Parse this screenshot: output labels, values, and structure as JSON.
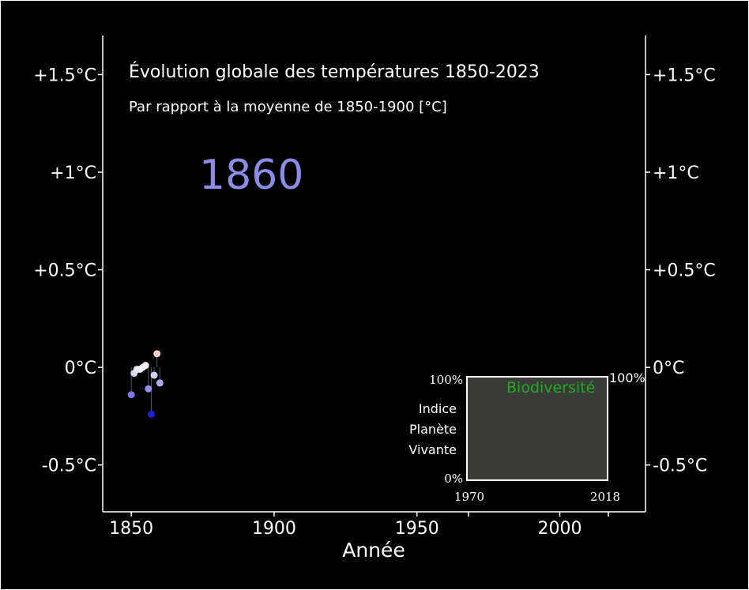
{
  "chart_data": {
    "type": "scatter",
    "title": "Évolution globale des températures 1850-2023",
    "subtitle": "Par rapport à la moyenne de 1850-1900 [°C]",
    "current_year": "1860",
    "xlabel": "Année",
    "xlim": [
      1840,
      2030
    ],
    "ylim": [
      -0.74,
      1.7
    ],
    "x_ticks": [
      1850,
      1900,
      1950,
      2000
    ],
    "y_ticks": [
      {
        "value": -0.5,
        "label": "-0.5°C"
      },
      {
        "value": 0,
        "label": "0°C"
      },
      {
        "value": 0.5,
        "label": "+0.5°C"
      },
      {
        "value": 1,
        "label": "+1°C"
      },
      {
        "value": 1.5,
        "label": "+1.5°C"
      }
    ],
    "points": [
      {
        "x": 1850,
        "y": -0.14
      },
      {
        "x": 1851,
        "y": -0.03
      },
      {
        "x": 1852,
        "y": -0.01
      },
      {
        "x": 1853,
        "y": -0.01
      },
      {
        "x": 1854,
        "y": 0.0
      },
      {
        "x": 1855,
        "y": 0.01
      },
      {
        "x": 1856,
        "y": -0.11
      },
      {
        "x": 1857,
        "y": -0.24
      },
      {
        "x": 1858,
        "y": -0.04
      },
      {
        "x": 1859,
        "y": 0.07
      },
      {
        "x": 1860,
        "y": -0.08
      }
    ],
    "colors": {
      "background": "#000000",
      "axis": "#ffffff",
      "year_label": "#8c8ce8",
      "cold": "#1616d8",
      "neutral": "#f2f2ff",
      "warm": "#ffd0c8"
    },
    "inset": {
      "title": "Biodiversité",
      "title_color": "#22aa22",
      "ylabel": [
        "Indice",
        "Planète",
        "Vivante"
      ],
      "y_min_label": "0%",
      "y_max_label": "100%",
      "right_label": "100%",
      "x_start": "1970",
      "x_end": "2018",
      "fill": "#3a3b38"
    }
  }
}
